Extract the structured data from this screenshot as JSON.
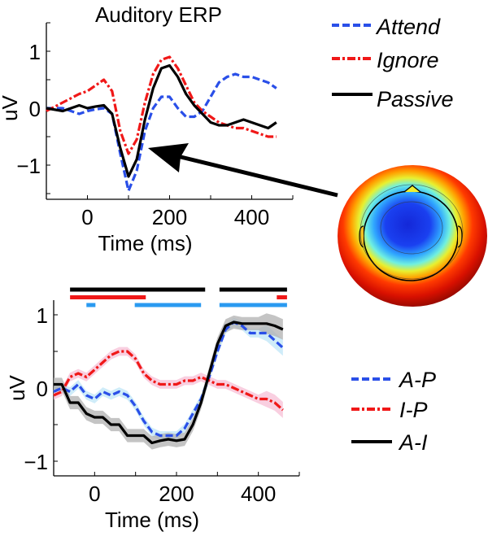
{
  "chart_data": [
    {
      "type": "line",
      "title": "Auditory ERP",
      "xlabel": "Time (ms)",
      "ylabel": "uV",
      "xlim": [
        -100,
        500
      ],
      "ylim": [
        -1.6,
        1.5
      ],
      "xticks": [
        0,
        200,
        400
      ],
      "yticks": [
        -1,
        0,
        1
      ],
      "xtick_labels": [
        "0",
        "200",
        "400"
      ],
      "ytick_labels": [
        "−1",
        "0",
        "1"
      ],
      "legend_position": "top-right",
      "x": [
        -100,
        -60,
        -20,
        0,
        20,
        40,
        60,
        80,
        100,
        120,
        140,
        160,
        180,
        200,
        220,
        240,
        260,
        280,
        300,
        320,
        340,
        360,
        380,
        400,
        420,
        440,
        460
      ],
      "series": [
        {
          "name": "Attend",
          "color": "#2a4fe8",
          "style": "dashed",
          "values": [
            0,
            0,
            -0.1,
            -0.05,
            -0.02,
            0,
            -0.1,
            -0.8,
            -1.45,
            -1.1,
            -0.4,
            0,
            0.2,
            0.2,
            0,
            -0.15,
            -0.15,
            -0.05,
            0.2,
            0.45,
            0.55,
            0.6,
            0.55,
            0.55,
            0.5,
            0.45,
            0.35
          ]
        },
        {
          "name": "Ignore",
          "color": "#f01818",
          "style": "dashdot",
          "values": [
            -0.05,
            0.1,
            0.25,
            0.3,
            0.4,
            0.5,
            0.3,
            -0.4,
            -0.8,
            -0.55,
            0.1,
            0.6,
            0.85,
            0.9,
            0.7,
            0.4,
            0.1,
            -0.05,
            -0.15,
            -0.25,
            -0.3,
            -0.35,
            -0.35,
            -0.4,
            -0.45,
            -0.5,
            -0.5
          ]
        },
        {
          "name": "Passive",
          "color": "#000000",
          "style": "solid",
          "values": [
            0,
            -0.05,
            0.05,
            0,
            0.03,
            0.05,
            -0.1,
            -0.7,
            -1.2,
            -0.9,
            -0.2,
            0.35,
            0.7,
            0.75,
            0.55,
            0.25,
            0.05,
            -0.1,
            -0.25,
            -0.3,
            -0.3,
            -0.25,
            -0.2,
            -0.25,
            -0.3,
            -0.35,
            -0.25
          ]
        }
      ]
    },
    {
      "type": "line",
      "xlabel": "Time (ms)",
      "ylabel": "uV",
      "xlim": [
        -100,
        500
      ],
      "ylim": [
        -1.2,
        1.2
      ],
      "xticks": [
        0,
        200,
        400
      ],
      "yticks": [
        -1,
        0,
        1
      ],
      "xtick_labels": [
        "0",
        "200",
        "400"
      ],
      "ytick_labels": [
        "−1",
        "0",
        "1"
      ],
      "legend_position": "right",
      "x": [
        -100,
        -80,
        -60,
        -40,
        -20,
        0,
        20,
        40,
        60,
        80,
        100,
        120,
        140,
        160,
        180,
        200,
        220,
        240,
        260,
        280,
        300,
        320,
        340,
        360,
        380,
        400,
        420,
        440,
        460
      ],
      "series": [
        {
          "name": "A-P",
          "color": "#2a4fe8",
          "band_color": "#bfe6f7",
          "style": "dashed",
          "values": [
            -0.05,
            0,
            -0.05,
            0.05,
            -0.1,
            -0.15,
            -0.05,
            -0.1,
            -0.05,
            -0.1,
            -0.25,
            -0.45,
            -0.6,
            -0.65,
            -0.65,
            -0.65,
            -0.55,
            -0.35,
            -0.15,
            0.15,
            0.5,
            0.8,
            0.9,
            0.85,
            0.75,
            0.75,
            0.75,
            0.65,
            0.55
          ]
        },
        {
          "name": "I-P",
          "color": "#f01818",
          "band_color": "#f7bfd6",
          "style": "dashdot",
          "values": [
            -0.1,
            -0.05,
            0.15,
            0.2,
            0.15,
            0.25,
            0.35,
            0.45,
            0.5,
            0.5,
            0.4,
            0.2,
            0.1,
            0.05,
            0.05,
            0.05,
            0.1,
            0.1,
            0.15,
            0.1,
            0.05,
            0.05,
            0,
            -0.05,
            -0.1,
            -0.15,
            -0.15,
            -0.2,
            -0.3
          ]
        },
        {
          "name": "A-I",
          "color": "#000000",
          "band_color": "#b0b0b0",
          "style": "solid",
          "values": [
            0.05,
            0.05,
            -0.2,
            -0.2,
            -0.35,
            -0.4,
            -0.4,
            -0.5,
            -0.5,
            -0.65,
            -0.65,
            -0.65,
            -0.75,
            -0.72,
            -0.7,
            -0.72,
            -0.7,
            -0.5,
            -0.2,
            0.2,
            0.6,
            0.85,
            0.9,
            0.88,
            0.88,
            0.88,
            0.88,
            0.85,
            0.8
          ]
        }
      ],
      "significance_bars": [
        {
          "color": "#000000",
          "intervals": [
            [
              -60,
              270
            ],
            [
              305,
              470
            ]
          ]
        },
        {
          "color": "#f01818",
          "intervals": [
            [
              -60,
              125
            ],
            [
              445,
              470
            ]
          ]
        },
        {
          "color": "#2a9af0",
          "intervals": [
            [
              -20,
              2
            ],
            [
              98,
              260
            ],
            [
              305,
              470
            ]
          ]
        }
      ]
    }
  ],
  "topography": {
    "colors": [
      "#8b0000",
      "#ff2a00",
      "#ffa000",
      "#f0f020",
      "#60f0e0",
      "#1ea0ff",
      "#1530e0"
    ]
  }
}
